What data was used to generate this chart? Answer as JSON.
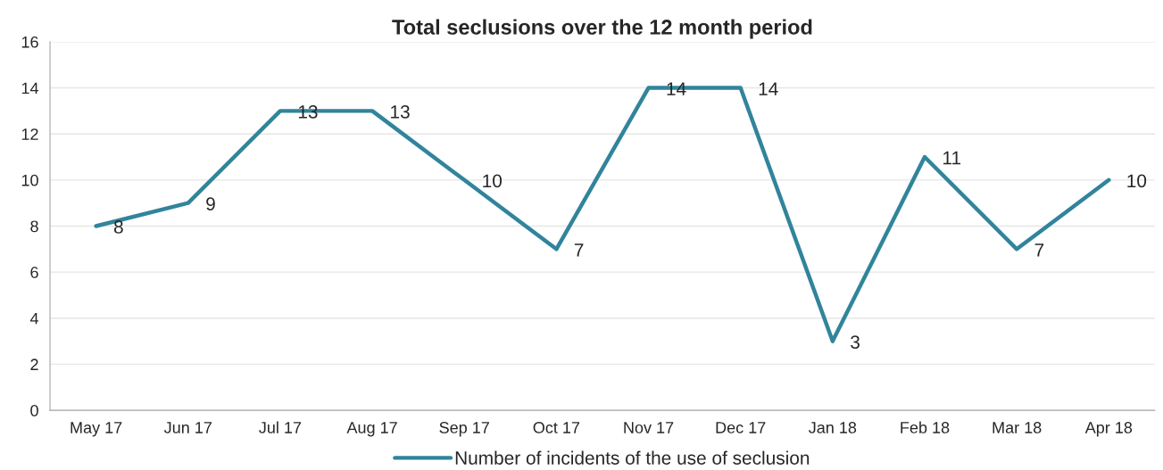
{
  "chart_data": {
    "type": "line",
    "title": "Total seclusions over the 12 month period",
    "categories": [
      "May 17",
      "Jun 17",
      "Jul 17",
      "Aug 17",
      "Sep 17",
      "Oct 17",
      "Nov 17",
      "Dec 17",
      "Jan 18",
      "Feb 18",
      "Mar 18",
      "Apr 18"
    ],
    "series": [
      {
        "name": "Number of incidents of the use of seclusion",
        "color": "#31849b",
        "values": [
          8,
          9,
          13,
          13,
          10,
          7,
          14,
          14,
          3,
          11,
          7,
          10
        ]
      }
    ],
    "ylim": [
      0,
      16
    ],
    "yticks": [
      0,
      2,
      4,
      6,
      8,
      10,
      12,
      14,
      16
    ],
    "grid": "y",
    "legend": "bottom",
    "data_labels": true,
    "marker": "none",
    "line_style": "solid"
  }
}
